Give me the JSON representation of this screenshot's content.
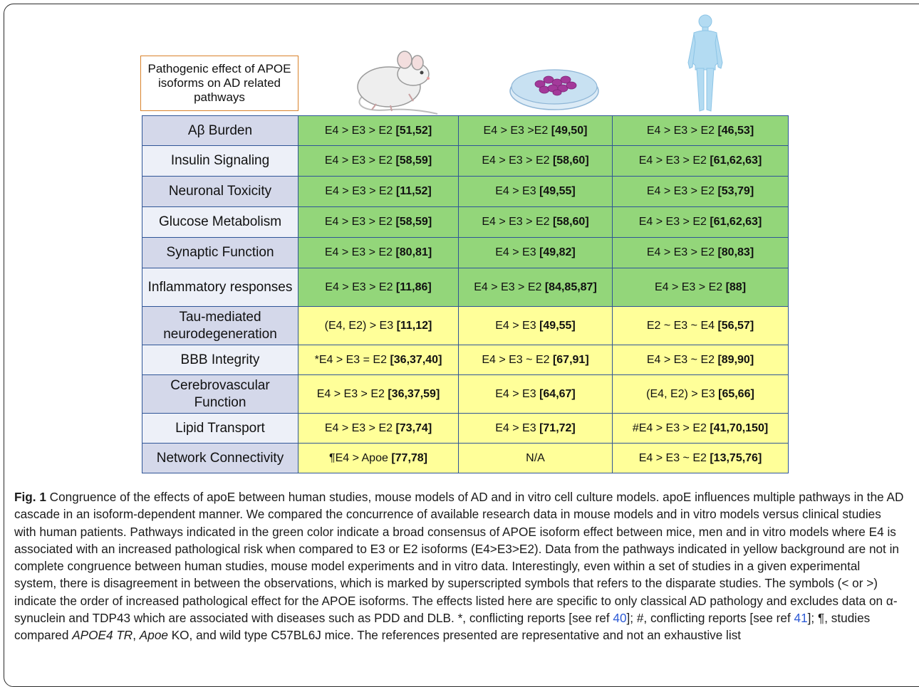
{
  "header_box": "Pathogenic effect of APOE isoforms on AD related  pathways",
  "images": {
    "mouse": "mouse-illustration",
    "dish": "petri-dish-illustration",
    "human": "human-figure-illustration"
  },
  "colors": {
    "green": "#93d67a",
    "yellow": "#ffff99",
    "border": "#2f5597",
    "label": "#d4d8ea"
  },
  "rows": [
    {
      "label": "Aβ Burden",
      "cls": "green",
      "cells": [
        [
          "E4 > E3 > E2 ",
          "[51,52]"
        ],
        [
          "E4 > E3 >E2 ",
          "[49,50]"
        ],
        [
          "E4 > E3 > E2 ",
          "[46,53]"
        ]
      ]
    },
    {
      "label": "Insulin Signaling",
      "cls": "green",
      "cells": [
        [
          "E4 > E3 > E2 ",
          "[58,59]"
        ],
        [
          "E4 > E3 > E2 ",
          "[58,60]"
        ],
        [
          "E4 > E3 > E2 ",
          "[61,62,63]"
        ]
      ]
    },
    {
      "label": "Neuronal Toxicity",
      "cls": "green",
      "cells": [
        [
          "E4 > E3 > E2 ",
          "[11,52]"
        ],
        [
          "E4 > E3 ",
          "[49,55]"
        ],
        [
          "E4 > E3 > E2 ",
          "[53,79]"
        ]
      ]
    },
    {
      "label": "Glucose Metabolism",
      "cls": "green",
      "cells": [
        [
          "E4 > E3 > E2 ",
          "[58,59]"
        ],
        [
          "E4 > E3 > E2 ",
          "[58,60]"
        ],
        [
          "E4 > E3 > E2 ",
          "[61,62,63]"
        ]
      ]
    },
    {
      "label": "Synaptic Function",
      "cls": "green",
      "cells": [
        [
          "E4 > E3 > E2 ",
          "[80,81]"
        ],
        [
          "E4 > E3 ",
          "[49,82]"
        ],
        [
          "E4 > E3 > E2 ",
          "[80,83]"
        ]
      ]
    },
    {
      "label": "Inflammatory responses",
      "cls": "green",
      "cells": [
        [
          "E4 > E3 > E2 ",
          "[11,86]"
        ],
        [
          "E4 > E3 > E2 ",
          "[84,85,87]"
        ],
        [
          "E4 > E3 > E2 ",
          "[88]"
        ]
      ]
    },
    {
      "label": "Tau-mediated neurodegeneration",
      "cls": "yellow",
      "cells": [
        [
          "(E4, E2) > E3 ",
          "[11,12]"
        ],
        [
          "E4 > E3 ",
          "[49,55]"
        ],
        [
          "E2 ~ E3 ~ E4 ",
          "[56,57]"
        ]
      ]
    },
    {
      "label": "BBB Integrity",
      "cls": "yellow",
      "cells": [
        [
          "*E4 > E3 = E2 ",
          "[36,37,40]"
        ],
        [
          "E4 > E3 ~ E2 ",
          "[67,91]"
        ],
        [
          "E4 > E3 ~ E2 ",
          "[89,90]"
        ]
      ]
    },
    {
      "label": "Cerebrovascular Function",
      "cls": "yellow",
      "cells": [
        [
          "E4 > E3 > E2 ",
          "[36,37,59]"
        ],
        [
          "E4 > E3 ",
          "[64,67]"
        ],
        [
          "(E4, E2) > E3 ",
          "[65,66]"
        ]
      ]
    },
    {
      "label": "Lipid Transport",
      "cls": "yellow",
      "cells": [
        [
          "E4 > E3 > E2 ",
          "[73,74]"
        ],
        [
          "E4 > E3 ",
          "[71,72]"
        ],
        [
          "#E4 > E3 > E2 ",
          "[41,70,150]"
        ]
      ]
    },
    {
      "label": "Network Connectivity",
      "cls": "yellow",
      "cells": [
        [
          "¶E4 > Apoe ",
          "[77,78]"
        ],
        [
          "N/A",
          ""
        ],
        [
          "E4 > E3 ~ E2 ",
          "[13,75,76]"
        ]
      ]
    }
  ],
  "caption": {
    "fig_label": "Fig. 1",
    "part1": " Congruence of the effects of apoE between human studies, mouse models of AD and in vitro cell culture models. apoE influences multiple pathways in the AD cascade in an isoform-dependent manner. We compared the concurrence of available research data in mouse models and in vitro models versus clinical studies with human patients. Pathways indicated in the green color indicate a broad consensus of APOE isoform effect between mice, men and in vitro models where E4 is associated with an increased pathological risk when compared to E3 or E2 isoforms (E4>E3>E2). Data from the pathways indicated in yellow background are not in complete congruence between human studies, mouse model experiments and in vitro data. Interestingly, even within a set of studies in a given experimental system, there is disagreement in between the observations, which is marked by superscripted symbols that refers to the disparate studies. The symbols (< or >) indicate the order of increased pathological effect for the APOE isoforms. The effects listed here are specific to only classical AD pathology and excludes data on α-synuclein and TDP43 which are associated with diseases such as PDD and DLB. *, conflicting reports [see ref ",
    "ref1": "40",
    "part2": "]; #, conflicting reports [see ref ",
    "ref2": "41",
    "part3": "]; ¶, studies compared ",
    "italic1": "APOE4 TR",
    "part4": ", ",
    "italic2": "Apoe",
    "part5": " KO, and wild type C57BL6J mice. The references presented are representative and not an exhaustive list"
  }
}
